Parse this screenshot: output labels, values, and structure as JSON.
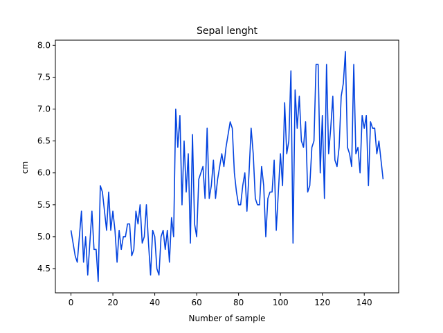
{
  "chart_data": {
    "type": "line",
    "title": "Sepal lenght",
    "xlabel": "Number of sample",
    "ylabel": "cm",
    "xlim": [
      -7.45,
      156.45
    ],
    "ylim": [
      4.12,
      8.08
    ],
    "xticks": [
      0,
      20,
      40,
      60,
      80,
      100,
      120,
      140
    ],
    "yticks": [
      4.5,
      5.0,
      5.5,
      6.0,
      6.5,
      7.0,
      7.5,
      8.0
    ],
    "xtick_labels": [
      "0",
      "20",
      "40",
      "60",
      "80",
      "100",
      "120",
      "140"
    ],
    "ytick_labels": [
      "4.5",
      "5.0",
      "5.5",
      "6.0",
      "6.5",
      "7.0",
      "7.5",
      "8.0"
    ],
    "grid": false,
    "line_color": "#0343df",
    "series": [
      {
        "values": [
          5.1,
          4.9,
          4.7,
          4.6,
          5.0,
          5.4,
          4.6,
          5.0,
          4.4,
          4.9,
          5.4,
          4.8,
          4.8,
          4.3,
          5.8,
          5.7,
          5.4,
          5.1,
          5.7,
          5.1,
          5.4,
          5.1,
          4.6,
          5.1,
          4.8,
          5.0,
          5.0,
          5.2,
          5.2,
          4.7,
          4.8,
          5.4,
          5.2,
          5.5,
          4.9,
          5.0,
          5.5,
          4.9,
          4.4,
          5.1,
          5.0,
          4.5,
          4.4,
          5.0,
          5.1,
          4.8,
          5.1,
          4.6,
          5.3,
          5.0,
          7.0,
          6.4,
          6.9,
          5.5,
          6.5,
          5.7,
          6.3,
          4.9,
          6.6,
          5.2,
          5.0,
          5.9,
          6.0,
          6.1,
          5.6,
          6.7,
          5.6,
          5.8,
          6.2,
          5.6,
          5.9,
          6.1,
          6.3,
          6.1,
          6.4,
          6.6,
          6.8,
          6.7,
          6.0,
          5.7,
          5.5,
          5.5,
          5.8,
          6.0,
          5.4,
          6.0,
          6.7,
          6.3,
          5.6,
          5.5,
          5.5,
          6.1,
          5.8,
          5.0,
          5.6,
          5.7,
          5.7,
          6.2,
          5.1,
          5.7,
          6.3,
          5.8,
          7.1,
          6.3,
          6.5,
          7.6,
          4.9,
          7.3,
          6.7,
          7.2,
          6.5,
          6.4,
          6.8,
          5.7,
          5.8,
          6.4,
          6.5,
          7.7,
          7.7,
          6.0,
          6.9,
          5.6,
          7.7,
          6.3,
          6.7,
          7.2,
          6.2,
          6.1,
          6.4,
          7.2,
          7.4,
          7.9,
          6.4,
          6.3,
          6.1,
          7.7,
          6.3,
          6.4,
          6.0,
          6.9,
          6.7,
          6.9,
          5.8,
          6.8,
          6.7,
          6.7,
          6.3,
          6.5,
          6.2,
          5.9
        ]
      }
    ]
  }
}
